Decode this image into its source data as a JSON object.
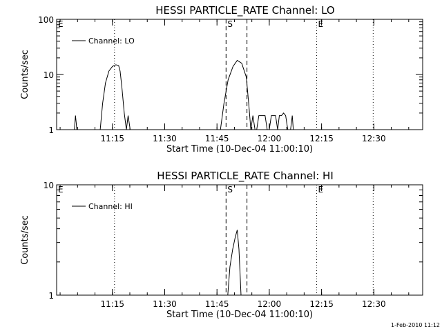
{
  "footer": "1-Feb-2010 11:12",
  "chart_data": [
    {
      "type": "line",
      "title": "HESSI PARTICLE_RATE Channel: LO",
      "xlabel": "Start Time (10-Dec-04 11:00:10)",
      "ylabel": "Counts/sec",
      "yscale": "log",
      "ylim": [
        1,
        100
      ],
      "yticks": [
        1,
        10,
        100
      ],
      "ytick_labels": [
        "1",
        "10",
        "100"
      ],
      "xlim_minutes": [
        0,
        105
      ],
      "xticks_minutes": [
        16,
        31,
        46,
        61,
        76,
        91
      ],
      "xtick_labels": [
        "11:15",
        "11:30",
        "11:45",
        "12:00",
        "12:15",
        "12:30"
      ],
      "legend": "Channel: LO",
      "legend_position": "top-left",
      "markers": [
        {
          "label": "E",
          "x": 0,
          "style": "none"
        },
        {
          "label": "",
          "x": 16.6,
          "style": "dotted"
        },
        {
          "label": "S",
          "x": 48.6,
          "style": "dashed"
        },
        {
          "label": "",
          "x": 54.6,
          "style": "dashed"
        },
        {
          "label": "E",
          "x": 74.6,
          "style": "dotted"
        },
        {
          "label": "",
          "x": 90.8,
          "style": "dotted"
        }
      ],
      "series": [
        {
          "name": "Channel: LO",
          "x": [
            5.1,
            5.4,
            5.8,
            12.5,
            13.2,
            14,
            15,
            16,
            17,
            17.8,
            18.2,
            18.7,
            19.4,
            20,
            20.5,
            21.1,
            47,
            48,
            49.2,
            50.6,
            51.8,
            53.1,
            54.4,
            55.1,
            55.7,
            56.3,
            56.9,
            57.4,
            58,
            58.6,
            59.2,
            59.8,
            60.4,
            61,
            61.6,
            62.2,
            62.8,
            63.4,
            63.9,
            64.5,
            65.1,
            65.7,
            66.3,
            67.1,
            67.6,
            67.9
          ],
          "y": [
            1,
            1.8,
            1,
            1,
            3,
            7,
            11.5,
            14,
            15,
            14.5,
            11.5,
            6,
            2,
            1,
            1.8,
            1,
            1,
            3,
            8,
            14,
            18,
            16,
            9,
            3,
            1,
            1.8,
            1,
            1,
            1.8,
            1.8,
            1.8,
            1.8,
            1,
            1,
            1.8,
            1.8,
            1.8,
            1,
            1.8,
            1.8,
            2,
            1.8,
            1,
            1,
            1.8,
            1
          ]
        }
      ]
    },
    {
      "type": "line",
      "title": "HESSI PARTICLE_RATE Channel: HI",
      "xlabel": "Start Time (10-Dec-04 11:00:10)",
      "ylabel": "Counts/sec",
      "yscale": "log",
      "ylim": [
        1,
        10
      ],
      "yticks": [
        1,
        10
      ],
      "ytick_labels": [
        "1",
        "10"
      ],
      "xlim_minutes": [
        0,
        105
      ],
      "xticks_minutes": [
        16,
        31,
        46,
        61,
        76,
        91
      ],
      "xtick_labels": [
        "11:15",
        "11:30",
        "11:45",
        "12:00",
        "12:15",
        "12:30"
      ],
      "legend": "Channel: HI",
      "legend_position": "top-left",
      "markers": [
        {
          "label": "E",
          "x": 0,
          "style": "none"
        },
        {
          "label": "",
          "x": 16.6,
          "style": "dotted"
        },
        {
          "label": "S",
          "x": 48.6,
          "style": "dashed"
        },
        {
          "label": "",
          "x": 54.6,
          "style": "dashed"
        },
        {
          "label": "E",
          "x": 74.6,
          "style": "dotted"
        },
        {
          "label": "",
          "x": 90.8,
          "style": "dotted"
        }
      ],
      "series": [
        {
          "name": "Channel: HI",
          "x": [
            49.1,
            49.7,
            50.5,
            51.2,
            51.8,
            52.3,
            52.9
          ],
          "y": [
            1,
            1.8,
            2.6,
            3.3,
            3.9,
            2.6,
            1
          ]
        }
      ]
    }
  ]
}
